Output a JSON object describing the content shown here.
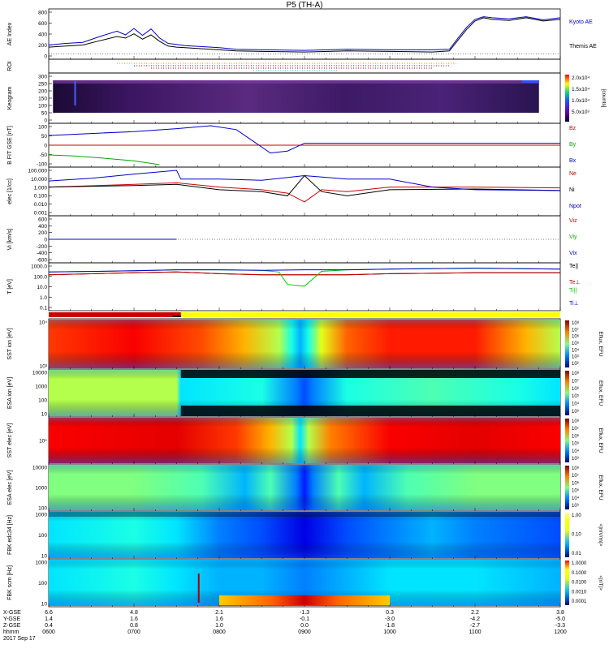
{
  "title": "P5 (TH-A)",
  "date_label": "2017 Sep 17",
  "chart_data": [
    {
      "type": "line",
      "panel": "AE Index",
      "ylabel": "AE Index",
      "yticks": [
        "800",
        "600",
        "400",
        "200",
        "0"
      ],
      "ylim": [
        -50,
        800
      ],
      "x_hours": [
        6,
        7,
        8,
        9,
        10,
        11,
        12
      ],
      "series": [
        {
          "name": "Kyoto AE",
          "color": "#0000cc",
          "x": [
            6.0,
            6.2,
            6.4,
            6.6,
            6.8,
            6.9,
            7.0,
            7.1,
            7.2,
            7.3,
            7.4,
            7.5,
            7.6,
            7.8,
            8.0,
            8.2,
            8.5,
            9.0,
            9.5,
            10.0,
            10.5,
            10.7,
            10.8,
            10.9,
            11.0,
            11.1,
            11.2,
            11.4,
            11.6,
            11.8,
            12.0
          ],
          "y": [
            170,
            200,
            220,
            330,
            430,
            360,
            480,
            350,
            470,
            300,
            200,
            180,
            160,
            140,
            120,
            90,
            80,
            70,
            90,
            80,
            80,
            90,
            300,
            500,
            650,
            700,
            680,
            660,
            700,
            640,
            680
          ]
        },
        {
          "name": "Themis AE",
          "color": "#000000",
          "x": [
            6.0,
            6.2,
            6.4,
            6.6,
            6.8,
            6.9,
            7.0,
            7.1,
            7.2,
            7.3,
            7.4,
            7.5,
            7.6,
            7.8,
            8.0,
            8.2,
            8.5,
            9.0,
            9.5,
            10.0,
            10.5,
            10.7,
            10.8,
            10.9,
            11.0,
            11.1,
            11.2,
            11.4,
            11.6,
            11.8,
            12.0
          ],
          "y": [
            130,
            150,
            170,
            250,
            330,
            300,
            380,
            280,
            360,
            240,
            150,
            130,
            120,
            100,
            80,
            60,
            50,
            40,
            60,
            50,
            40,
            60,
            260,
            460,
            620,
            680,
            650,
            630,
            680,
            620,
            650
          ]
        }
      ]
    },
    {
      "type": "line",
      "panel": "ROI",
      "ylabel": "ROI"
    },
    {
      "type": "heatmap",
      "panel": "Keogram",
      "ylabel": "Keogram",
      "yticks": [
        "300",
        "250",
        "200",
        "150",
        "100",
        "50",
        "0"
      ],
      "colorbar": {
        "label": "[counts]",
        "ticks": [
          "2.0x10⁴",
          "1.5x10⁴",
          "1.0x10⁴",
          "5.0x10³"
        ]
      }
    },
    {
      "type": "line",
      "panel": "B FIT GSE",
      "ylabel": "B FIT GSE [nT]",
      "yticks": [
        "100",
        "50",
        "0",
        "-50",
        "-100"
      ],
      "ylim": [
        -100,
        100
      ],
      "series": [
        {
          "name": "Bz",
          "color": "#cc0000",
          "x": [
            6.0,
            12.0
          ],
          "y": [
            0,
            0
          ]
        },
        {
          "name": "By",
          "color": "#00aa00",
          "x": [
            6.0,
            6.3,
            6.6,
            7.0,
            7.3
          ],
          "y": [
            -50,
            -55,
            -65,
            -80,
            -100
          ]
        },
        {
          "name": "Bx",
          "color": "#0000cc",
          "x": [
            6.0,
            6.5,
            7.0,
            7.5,
            7.9,
            8.2,
            8.4,
            8.6,
            8.8,
            9.0,
            12.0
          ],
          "y": [
            50,
            60,
            70,
            85,
            100,
            80,
            20,
            -40,
            -30,
            10,
            10
          ]
        }
      ]
    },
    {
      "type": "line",
      "panel": "n",
      "ylabel": "elec [1/cc]",
      "yticks": [
        "100.000",
        "10.000",
        "1.000",
        "0.100",
        "0.010",
        "0.001"
      ],
      "ylim": [
        0.001,
        100
      ],
      "log": true,
      "series": [
        {
          "name": "Ne",
          "color": "#cc0000",
          "x": [
            6.0,
            7.0,
            7.5,
            8.0,
            8.5,
            8.8,
            9.0,
            9.2,
            9.5,
            10.0,
            11.0,
            12.0
          ],
          "y": [
            1,
            2,
            3,
            1,
            0.5,
            0.2,
            0.02,
            0.5,
            0.3,
            1,
            1,
            0.8
          ]
        },
        {
          "name": "Ni",
          "color": "#000000",
          "x": [
            6.0,
            7.0,
            7.5,
            8.0,
            8.5,
            8.8,
            9.0,
            9.2,
            9.5,
            10.0,
            11.0,
            12.0
          ],
          "y": [
            1,
            1.5,
            2,
            0.5,
            0.3,
            0.1,
            20,
            0.3,
            0.1,
            0.5,
            0.6,
            0.4
          ]
        },
        {
          "name": "Npot",
          "color": "#0000cc",
          "x": [
            6.0,
            6.5,
            7.0,
            7.5,
            7.55,
            8.0,
            8.5,
            9.0,
            9.5,
            10.0,
            10.5,
            11.0,
            12.0
          ],
          "y": [
            5,
            10,
            30,
            80,
            8,
            8,
            6,
            20,
            8,
            8,
            1,
            0.5,
            0.4
          ]
        }
      ]
    },
    {
      "type": "line",
      "panel": "Vi",
      "ylabel": "Vi [km/s]",
      "yticks": [
        "600",
        "400",
        "200",
        "0",
        "-200",
        "-400",
        "-600"
      ],
      "ylim": [
        -600,
        600
      ],
      "series": [
        {
          "name": "Viz",
          "color": "#cc0000",
          "x": [
            6.0,
            7.5
          ],
          "y": [
            0,
            0
          ]
        },
        {
          "name": "Viy",
          "color": "#00aa00",
          "x": [
            6.0,
            7.5
          ],
          "y": [
            0,
            0
          ]
        },
        {
          "name": "Vix",
          "color": "#0000cc",
          "x": [
            6.0,
            7.5
          ],
          "y": [
            0,
            0
          ]
        }
      ]
    },
    {
      "type": "line",
      "panel": "T",
      "ylabel": "T [eV]",
      "yticks": [
        "1000.0",
        "100.0",
        "10.0",
        "1.0",
        "0.1"
      ],
      "ylim": [
        0.1,
        3000
      ],
      "log": true,
      "series": [
        {
          "name": "Te||",
          "color": "#000000",
          "x": [
            6.0,
            7.0,
            7.5,
            8.0,
            8.5,
            9.0,
            9.5,
            10.0,
            11.0,
            12.0
          ],
          "y": [
            300,
            500,
            600,
            400,
            300,
            300,
            300,
            400,
            500,
            500
          ]
        },
        {
          "name": "Te⊥",
          "color": "#cc0000",
          "x": [
            6.0,
            7.0,
            7.5,
            8.0,
            8.5,
            9.0,
            9.5,
            10.0,
            11.0,
            12.0
          ],
          "y": [
            300,
            500,
            600,
            400,
            300,
            300,
            300,
            400,
            500,
            500
          ]
        },
        {
          "name": "Ti||",
          "color": "#00cc00",
          "x": [
            6.0,
            7.0,
            7.5,
            8.0,
            8.5,
            8.7,
            8.8,
            9.0,
            9.2,
            9.5,
            10.0,
            11.0,
            12.0
          ],
          "y": [
            600,
            800,
            1000,
            1000,
            900,
            600,
            30,
            20,
            700,
            1000,
            1200,
            1500,
            1200
          ]
        },
        {
          "name": "Ti⊥",
          "color": "#0000cc",
          "x": [
            6.0,
            7.0,
            7.5,
            8.0,
            8.5,
            9.0,
            9.5,
            10.0,
            11.0,
            12.0
          ],
          "y": [
            600,
            800,
            1000,
            1000,
            900,
            1000,
            1000,
            1200,
            1500,
            1200
          ]
        }
      ]
    },
    {
      "type": "heatmap",
      "panel": "SST ion",
      "ylabel": "SST ion [eV]",
      "yticks": [
        "10⁴",
        "10³"
      ],
      "colorbar": {
        "label": "Eflux, EFU",
        "ticks": [
          "10⁸",
          "10⁷",
          "10⁶",
          "10⁵",
          "10⁴",
          "10³",
          "10²"
        ]
      }
    },
    {
      "type": "heatmap",
      "panel": "ESA ion",
      "ylabel": "ESA ion [eV]",
      "yticks": [
        "10000",
        "1000",
        "100",
        "10"
      ],
      "colorbar": {
        "label": "Eflux, EFU",
        "ticks": [
          "10⁸",
          "10⁷",
          "10⁶",
          "10⁵",
          "10⁴",
          "10³"
        ]
      }
    },
    {
      "type": "heatmap",
      "panel": "SST elec",
      "ylabel": "SST elec [eV]",
      "yticks": [
        "10⁵"
      ],
      "colorbar": {
        "label": "Eflux, EFU",
        "ticks": [
          "10⁸",
          "10⁷",
          "10⁶",
          "10⁵",
          "10⁴",
          "10³"
        ]
      }
    },
    {
      "type": "heatmap",
      "panel": "ESA elec",
      "ylabel": "ESA elec [eV]",
      "yticks": [
        "10000",
        "1000",
        "100"
      ],
      "colorbar": {
        "label": "Eflux, EFU",
        "ticks": [
          "10⁸",
          "10⁷",
          "10⁶",
          "10⁵",
          "10⁴",
          "10³"
        ]
      }
    },
    {
      "type": "heatmap",
      "panel": "FBK edc34",
      "ylabel": "FBK edc34 [Hz]",
      "yticks": [
        "1000",
        "100",
        "10"
      ],
      "colorbar": {
        "label": "<|mV/m|>",
        "ticks": [
          "1.00",
          "0.10",
          "0.01"
        ]
      }
    },
    {
      "type": "heatmap",
      "panel": "FBK scm",
      "ylabel": "FBK scm [Hz]",
      "yticks": [
        "1000",
        "100",
        "10"
      ],
      "colorbar": {
        "label": "<|nT|>",
        "ticks": [
          "1.0000",
          "0.1000",
          "0.0100",
          "0.0010",
          "0.0001"
        ]
      }
    }
  ],
  "axis_rows": [
    {
      "label": "X-GSE",
      "values": [
        "6.6",
        "4.8",
        "2.1",
        "-1.3",
        "0.3",
        "2.2",
        "3.8"
      ]
    },
    {
      "label": "Y-GSE",
      "values": [
        "1.4",
        "1.6",
        "1.6",
        "-0.1",
        "-3.0",
        "-4.2",
        "-5.0"
      ]
    },
    {
      "label": "Z-GSE",
      "values": [
        "0.4",
        "0.8",
        "1.0",
        "0.0",
        "-1.8",
        "-2.7",
        "-3.3"
      ]
    },
    {
      "label": "hhmm",
      "values": [
        "0600",
        "0700",
        "0800",
        "0900",
        "1000",
        "1100",
        "1200"
      ]
    }
  ]
}
